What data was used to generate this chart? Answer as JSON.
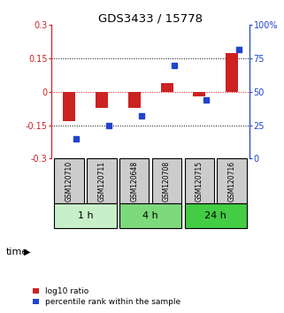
{
  "title": "GDS3433 / 15778",
  "samples": [
    "GSM120710",
    "GSM120711",
    "GSM120648",
    "GSM120708",
    "GSM120715",
    "GSM120716"
  ],
  "log10_ratio": [
    -0.13,
    -0.07,
    -0.07,
    0.04,
    -0.02,
    0.175
  ],
  "percentile_rank": [
    15,
    25,
    32,
    70,
    44,
    82
  ],
  "ylim_left": [
    -0.3,
    0.3
  ],
  "ylim_right": [
    0,
    100
  ],
  "yticks_left": [
    -0.3,
    -0.15,
    0,
    0.15,
    0.3
  ],
  "yticks_right": [
    0,
    25,
    50,
    75,
    100
  ],
  "yticklabels_left": [
    "-0.3",
    "-0.15",
    "0",
    "0.15",
    "0.3"
  ],
  "yticklabels_right": [
    "0",
    "25",
    "50",
    "75",
    "100%"
  ],
  "bar_color_red": "#cc2222",
  "bar_color_blue": "#2244cc",
  "sample_box_color": "#cccccc",
  "legend_red_label": "log10 ratio",
  "legend_blue_label": "percentile rank within the sample",
  "time_label": "time",
  "group_positions": [
    [
      0,
      1,
      "#c8f0c8",
      "1 h"
    ],
    [
      2,
      3,
      "#7cda7c",
      "4 h"
    ],
    [
      4,
      5,
      "#44cc44",
      "24 h"
    ]
  ]
}
